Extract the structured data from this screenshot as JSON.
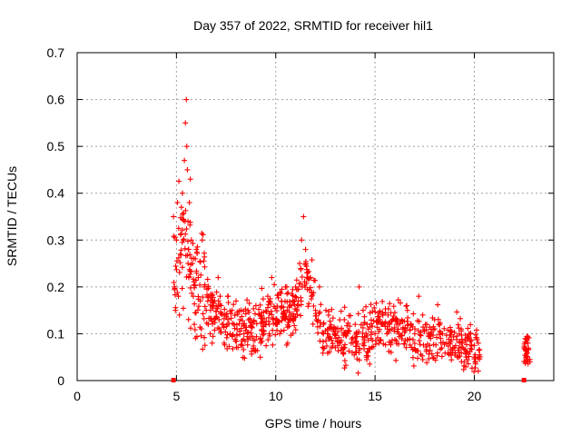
{
  "chart_data": {
    "type": "scatter",
    "title": "Day 357 of 2022, SRMTID for receiver hil1",
    "xlabel": "GPS time / hours",
    "ylabel": "SRMTID / TECUs",
    "xlim": [
      0,
      24
    ],
    "ylim": [
      0,
      0.7
    ],
    "xticks": [
      0,
      5,
      10,
      15,
      20
    ],
    "xtick_labels": [
      "0",
      "5",
      "10",
      "15",
      "20"
    ],
    "yticks": [
      0,
      0.1,
      0.2,
      0.3,
      0.4,
      0.5,
      0.6,
      0.7
    ],
    "ytick_labels": [
      "0",
      "0.1",
      "0.2",
      "0.3",
      "0.4",
      "0.5",
      "0.6",
      "0.7"
    ],
    "grid": true,
    "marker": "+",
    "marker_color": "#ff0000",
    "series": [
      {
        "name": "SRMTID",
        "description": "Dense cloud of red '+' markers from ~4.8 h to ~20.3 h and a small cluster near 22.5–22.8 h; representative digitised points below",
        "x": [
          4.85,
          4.9,
          4.95,
          5.0,
          5.05,
          5.1,
          5.15,
          5.2,
          5.25,
          5.3,
          5.35,
          5.4,
          5.45,
          5.5,
          5.52,
          5.55,
          5.58,
          5.6,
          5.62,
          5.65,
          5.7,
          5.75,
          5.8,
          5.85,
          5.9,
          5.95,
          6.0,
          6.1,
          6.2,
          6.3,
          6.4,
          6.5,
          6.6,
          6.7,
          6.8,
          6.9,
          7.0,
          7.1,
          7.2,
          7.3,
          7.4,
          7.5,
          7.6,
          7.7,
          7.8,
          7.9,
          8.0,
          8.2,
          8.4,
          8.6,
          8.8,
          9.0,
          9.2,
          9.4,
          9.6,
          9.8,
          10.0,
          10.2,
          10.4,
          10.6,
          10.8,
          11.0,
          11.2,
          11.3,
          11.4,
          11.5,
          11.6,
          11.8,
          12.0,
          12.2,
          12.4,
          12.6,
          12.8,
          13.0,
          13.2,
          13.4,
          13.6,
          13.8,
          14.0,
          14.2,
          14.4,
          14.6,
          14.8,
          15.0,
          15.2,
          15.4,
          15.6,
          15.8,
          16.0,
          16.2,
          16.4,
          16.6,
          16.8,
          17.0,
          17.2,
          17.4,
          17.6,
          17.8,
          18.0,
          18.2,
          18.4,
          18.6,
          18.8,
          19.0,
          19.2,
          19.4,
          19.6,
          19.8,
          20.0,
          20.2,
          22.5,
          22.6,
          22.7,
          22.8
        ],
        "y": [
          0.35,
          0.2,
          0.15,
          0.3,
          0.38,
          0.18,
          0.14,
          0.27,
          0.37,
          0.4,
          0.3,
          0.47,
          0.55,
          0.6,
          0.5,
          0.45,
          0.34,
          0.28,
          0.22,
          0.38,
          0.43,
          0.3,
          0.25,
          0.18,
          0.12,
          0.26,
          0.28,
          0.22,
          0.17,
          0.3,
          0.2,
          0.15,
          0.12,
          0.1,
          0.08,
          0.13,
          0.16,
          0.22,
          0.18,
          0.12,
          0.08,
          0.14,
          0.18,
          0.1,
          0.15,
          0.12,
          0.17,
          0.13,
          0.1,
          0.15,
          0.12,
          0.16,
          0.14,
          0.1,
          0.18,
          0.22,
          0.12,
          0.1,
          0.14,
          0.08,
          0.16,
          0.2,
          0.25,
          0.3,
          0.35,
          0.28,
          0.22,
          0.18,
          0.15,
          0.2,
          0.12,
          0.1,
          0.07,
          0.1,
          0.08,
          0.06,
          0.1,
          0.08,
          0.12,
          0.2,
          0.15,
          0.12,
          0.09,
          0.1,
          0.08,
          0.12,
          0.1,
          0.08,
          0.13,
          0.1,
          0.11,
          0.16,
          0.12,
          0.1,
          0.18,
          0.14,
          0.12,
          0.09,
          0.13,
          0.12,
          0.1,
          0.08,
          0.06,
          0.07,
          0.05,
          0.08,
          0.06,
          0.1,
          0.05,
          0.08,
          0.07,
          0.05,
          0.08,
          0.04
        ]
      }
    ],
    "zero_markers_x": [
      4.85,
      22.5
    ]
  }
}
